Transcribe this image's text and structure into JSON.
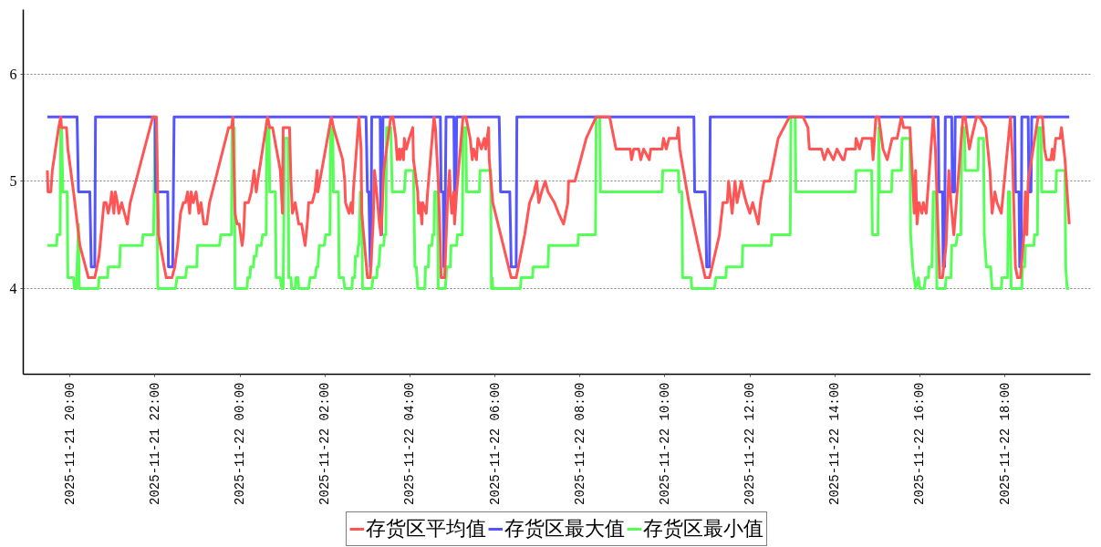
{
  "chart_data": {
    "type": "line",
    "grid": "y",
    "legend": "bottom",
    "line_style": "solid",
    "xlim": [
      "2025-11-21T18:54",
      "2025-11-22T20:01"
    ],
    "xticks": [
      {
        "value": "2025-11-21T20:00",
        "label": "2025-11-21 20:00"
      },
      {
        "value": "2025-11-21T22:00",
        "label": "2025-11-21 22:00"
      },
      {
        "value": "2025-11-22T00:00",
        "label": "2025-11-22 00:00"
      },
      {
        "value": "2025-11-22T02:00",
        "label": "2025-11-22 02:00"
      },
      {
        "value": "2025-11-22T04:00",
        "label": "2025-11-22 04:00"
      },
      {
        "value": "2025-11-22T06:00",
        "label": "2025-11-22 06:00"
      },
      {
        "value": "2025-11-22T08:00",
        "label": "2025-11-22 08:00"
      },
      {
        "value": "2025-11-22T10:00",
        "label": "2025-11-22 10:00"
      },
      {
        "value": "2025-11-22T12:00",
        "label": "2025-11-22 12:00"
      },
      {
        "value": "2025-11-22T14:00",
        "label": "2025-11-22 14:00"
      },
      {
        "value": "2025-11-22T16:00",
        "label": "2025-11-22 16:00"
      },
      {
        "value": "2025-11-22T18:00",
        "label": "2025-11-22 18:00"
      }
    ],
    "ylim": [
      3.2,
      6.6
    ],
    "yticks": [
      4,
      5,
      6
    ],
    "series": [
      {
        "name": "存货区平均值",
        "color": "#ff5555",
        "x": [
          "2025-11-21T19:28",
          "2025-11-21T19:29",
          "2025-11-21T19:33",
          "2025-11-21T19:35",
          "2025-11-21T19:44",
          "2025-11-21T19:47",
          "2025-11-21T19:48",
          "2025-11-21T19:55",
          "2025-11-21T19:57",
          "2025-11-21T20:05",
          "2025-11-21T20:14",
          "2025-11-21T20:22",
          "2025-11-21T20:26",
          "2025-11-21T20:35",
          "2025-11-21T20:41",
          "2025-11-21T20:48",
          "2025-11-21T20:51",
          "2025-11-21T20:54",
          "2025-11-21T20:57",
          "2025-11-21T20:59",
          "2025-11-21T21:02",
          "2025-11-21T21:04",
          "2025-11-21T21:07",
          "2025-11-21T21:09",
          "2025-11-21T21:13",
          "2025-11-21T21:17",
          "2025-11-21T21:21",
          "2025-11-21T21:25",
          "2025-11-21T21:57",
          "2025-11-21T22:02",
          "2025-11-21T22:05",
          "2025-11-21T22:13",
          "2025-11-21T22:16",
          "2025-11-21T22:24",
          "2025-11-21T22:28",
          "2025-11-21T22:32",
          "2025-11-21T22:36",
          "2025-11-21T22:40",
          "2025-11-21T22:43",
          "2025-11-21T22:46",
          "2025-11-21T22:49",
          "2025-11-21T22:51",
          "2025-11-21T22:54",
          "2025-11-21T22:58",
          "2025-11-21T23:02",
          "2025-11-21T23:05",
          "2025-11-21T23:09",
          "2025-11-21T23:13",
          "2025-11-21T23:17",
          "2025-11-21T23:44",
          "2025-11-21T23:48",
          "2025-11-21T23:50",
          "2025-11-21T23:53",
          "2025-11-21T23:56",
          "2025-11-21T23:59",
          "2025-11-22T00:01",
          "2025-11-22T00:03",
          "2025-11-22T00:05",
          "2025-11-22T00:07",
          "2025-11-22T00:12",
          "2025-11-22T00:16",
          "2025-11-22T00:20",
          "2025-11-22T00:23",
          "2025-11-22T00:25",
          "2025-11-22T00:39",
          "2025-11-22T00:42",
          "2025-11-22T00:46",
          "2025-11-22T00:57",
          "2025-11-22T01:00",
          "2025-11-22T01:01",
          "2025-11-22T01:10",
          "2025-11-22T01:12",
          "2025-11-22T01:14",
          "2025-11-22T01:18",
          "2025-11-22T01:23",
          "2025-11-22T01:27",
          "2025-11-22T01:32",
          "2025-11-22T01:35",
          "2025-11-22T01:37",
          "2025-11-22T01:42",
          "2025-11-22T01:46",
          "2025-11-22T01:49",
          "2025-11-22T01:50",
          "2025-11-22T02:09",
          "2025-11-22T02:12",
          "2025-11-22T02:25",
          "2025-11-22T02:28",
          "2025-11-22T02:29",
          "2025-11-22T02:34",
          "2025-11-22T02:37",
          "2025-11-22T02:39",
          "2025-11-22T02:40",
          "2025-11-22T02:48",
          "2025-11-22T02:51",
          "2025-11-22T02:52",
          "2025-11-22T03:00",
          "2025-11-22T03:04",
          "2025-11-22T03:08",
          "2025-11-22T03:10",
          "2025-11-22T03:13",
          "2025-11-22T03:17",
          "2025-11-22T03:19",
          "2025-11-22T03:20",
          "2025-11-22T03:23",
          "2025-11-22T03:33",
          "2025-11-22T03:36",
          "2025-11-22T03:40",
          "2025-11-22T03:42",
          "2025-11-22T03:45",
          "2025-11-22T03:46",
          "2025-11-22T03:49",
          "2025-11-22T03:51",
          "2025-11-22T03:52",
          "2025-11-22T03:55",
          "2025-11-22T03:59",
          "2025-11-22T04:04",
          "2025-11-22T04:05",
          "2025-11-22T04:11",
          "2025-11-22T04:12",
          "2025-11-22T04:14",
          "2025-11-22T04:17",
          "2025-11-22T04:18",
          "2025-11-22T04:23",
          "2025-11-22T04:25",
          "2025-11-22T04:34",
          "2025-11-22T04:36",
          "2025-11-22T04:40",
          "2025-11-22T04:43",
          "2025-11-22T04:44",
          "2025-11-22T04:49",
          "2025-11-22T04:53",
          "2025-11-22T04:56",
          "2025-11-22T04:57",
          "2025-11-22T04:59",
          "2025-11-22T05:02",
          "2025-11-22T05:03",
          "2025-11-22T05:06",
          "2025-11-22T05:15",
          "2025-11-22T05:19",
          "2025-11-22T05:25",
          "2025-11-22T05:28",
          "2025-11-22T05:30",
          "2025-11-22T05:34",
          "2025-11-22T05:36",
          "2025-11-22T05:41",
          "2025-11-22T05:45",
          "2025-11-22T05:47",
          "2025-11-22T05:51",
          "2025-11-22T05:52",
          "2025-11-22T05:57",
          "2025-11-22T06:23",
          "2025-11-22T06:30",
          "2025-11-22T06:42",
          "2025-11-22T06:49",
          "2025-11-22T06:55",
          "2025-11-22T06:59",
          "2025-11-22T07:02",
          "2025-11-22T07:06",
          "2025-11-22T07:11",
          "2025-11-22T07:15",
          "2025-11-22T07:24",
          "2025-11-22T07:30",
          "2025-11-22T07:37",
          "2025-11-22T07:43",
          "2025-11-22T07:44",
          "2025-11-22T07:53",
          "2025-11-22T08:09",
          "2025-11-22T08:23",
          "2025-11-22T08:42",
          "2025-11-22T08:51",
          "2025-11-22T09:11",
          "2025-11-22T09:13",
          "2025-11-22T09:16",
          "2025-11-22T09:23",
          "2025-11-22T09:26",
          "2025-11-22T09:30",
          "2025-11-22T09:38",
          "2025-11-22T09:40",
          "2025-11-22T09:56",
          "2025-11-22T09:58",
          "2025-11-22T10:02",
          "2025-11-22T10:06",
          "2025-11-22T10:17",
          "2025-11-22T10:19",
          "2025-11-22T10:21",
          "2025-11-22T10:34",
          "2025-11-22T10:47",
          "2025-11-22T10:57",
          "2025-11-22T11:03",
          "2025-11-22T11:10",
          "2025-11-22T11:17",
          "2025-11-22T11:22",
          "2025-11-22T11:28",
          "2025-11-22T11:30",
          "2025-11-22T11:35",
          "2025-11-22T11:39",
          "2025-11-22T11:42",
          "2025-11-22T11:48",
          "2025-11-22T11:51",
          "2025-11-22T11:55",
          "2025-11-22T12:00",
          "2025-11-22T12:04",
          "2025-11-22T12:08",
          "2025-11-22T12:12",
          "2025-11-22T12:15",
          "2025-11-22T12:20",
          "2025-11-22T12:28",
          "2025-11-22T12:40",
          "2025-11-22T12:56",
          "2025-11-22T13:15",
          "2025-11-22T13:22",
          "2025-11-22T13:24",
          "2025-11-22T13:41",
          "2025-11-22T13:45",
          "2025-11-22T13:50",
          "2025-11-22T13:58",
          "2025-11-22T14:03",
          "2025-11-22T14:11",
          "2025-11-22T14:13",
          "2025-11-22T14:16",
          "2025-11-22T14:29",
          "2025-11-22T14:30",
          "2025-11-22T14:35",
          "2025-11-22T14:39",
          "2025-11-22T14:52",
          "2025-11-22T14:54",
          "2025-11-22T14:58",
          "2025-11-22T15:02",
          "2025-11-22T15:08",
          "2025-11-22T15:14",
          "2025-11-22T15:21",
          "2025-11-22T15:28",
          "2025-11-22T15:34",
          "2025-11-22T15:37",
          "2025-11-22T15:46",
          "2025-11-22T15:50",
          "2025-11-22T15:52",
          "2025-11-22T15:54",
          "2025-11-22T15:56",
          "2025-11-22T15:59",
          "2025-11-22T16:03",
          "2025-11-22T16:05",
          "2025-11-22T16:09",
          "2025-11-22T16:19",
          "2025-11-22T16:22",
          "2025-11-22T16:24",
          "2025-11-22T16:28",
          "2025-11-22T16:32",
          "2025-11-22T16:37",
          "2025-11-22T16:41",
          "2025-11-22T16:44",
          "2025-11-22T16:48",
          "2025-11-22T17:01",
          "2025-11-22T17:04",
          "2025-11-22T17:10",
          "2025-11-22T17:13",
          "2025-11-22T17:20",
          "2025-11-22T17:24",
          "2025-11-22T17:33",
          "2025-11-22T17:39",
          "2025-11-22T17:42",
          "2025-11-22T17:46",
          "2025-11-22T17:49",
          "2025-11-22T17:55",
          "2025-11-22T18:08",
          "2025-11-22T18:11",
          "2025-11-22T18:15",
          "2025-11-22T18:18",
          "2025-11-22T18:22",
          "2025-11-22T18:27",
          "2025-11-22T18:29",
          "2025-11-22T18:31",
          "2025-11-22T18:33",
          "2025-11-22T18:47",
          "2025-11-22T18:53",
          "2025-11-22T18:56",
          "2025-11-22T18:59",
          "2025-11-22T19:05",
          "2025-11-22T19:07",
          "2025-11-22T19:09",
          "2025-11-22T19:12",
          "2025-11-22T19:18",
          "2025-11-22T19:20",
          "2025-11-22T19:25",
          "2025-11-22T19:29",
          "2025-11-22T19:31"
        ],
        "values": [
          5.1,
          4.9,
          4.9,
          5.1,
          5.5,
          5.6,
          5.5,
          5.5,
          5.3,
          4.9,
          4.4,
          4.2,
          4.1,
          4.1,
          4.3,
          4.8,
          4.8,
          4.7,
          4.8,
          4.9,
          4.7,
          4.9,
          4.8,
          4.7,
          4.8,
          4.7,
          4.6,
          4.8,
          5.6,
          5.6,
          4.5,
          4.2,
          4.1,
          4.1,
          4.2,
          4.4,
          4.7,
          4.8,
          4.8,
          4.9,
          4.7,
          4.9,
          4.8,
          4.9,
          4.7,
          4.8,
          4.6,
          4.6,
          4.8,
          5.5,
          5.5,
          5.6,
          4.7,
          4.6,
          4.6,
          4.5,
          4.4,
          4.5,
          4.8,
          4.8,
          4.9,
          5.1,
          4.9,
          5.0,
          5.6,
          5.5,
          5.5,
          5.1,
          4.7,
          5.5,
          5.5,
          5.0,
          4.7,
          4.8,
          4.6,
          4.6,
          4.4,
          4.6,
          4.8,
          4.8,
          4.9,
          5.1,
          4.9,
          5.6,
          5.5,
          5.2,
          5.0,
          4.8,
          4.7,
          4.8,
          4.7,
          4.9,
          5.6,
          5.3,
          4.7,
          4.1,
          4.1,
          4.6,
          5.1,
          4.9,
          4.6,
          4.5,
          4.6,
          5.1,
          5.6,
          5.6,
          5.4,
          5.2,
          5.3,
          5.2,
          5.3,
          5.2,
          5.4,
          5.3,
          5.4,
          5.5,
          5.2,
          4.9,
          4.7,
          4.8,
          4.6,
          4.8,
          4.7,
          4.9,
          5.6,
          5.5,
          5.0,
          4.4,
          4.1,
          4.1,
          4.8,
          5.1,
          4.9,
          4.7,
          4.9,
          4.6,
          4.9,
          5.6,
          5.6,
          5.4,
          5.2,
          5.3,
          5.2,
          5.4,
          5.3,
          5.4,
          5.3,
          5.5,
          5.2,
          4.8,
          4.1,
          4.1,
          4.5,
          4.8,
          4.9,
          5.0,
          4.8,
          4.9,
          5.0,
          4.9,
          4.8,
          4.7,
          4.6,
          4.8,
          5.0,
          5.0,
          5.4,
          5.6,
          5.6,
          5.3,
          5.3,
          5.2,
          5.3,
          5.3,
          5.2,
          5.3,
          5.2,
          5.3,
          5.3,
          5.4,
          5.3,
          5.4,
          5.4,
          5.5,
          5.3,
          4.8,
          4.4,
          4.1,
          4.1,
          4.3,
          4.5,
          4.8,
          4.8,
          5.0,
          4.7,
          5.0,
          4.8,
          5.0,
          4.9,
          4.8,
          4.7,
          4.8,
          4.7,
          4.6,
          4.8,
          5.0,
          5.0,
          5.4,
          5.6,
          5.6,
          5.5,
          5.3,
          5.3,
          5.2,
          5.3,
          5.2,
          5.3,
          5.2,
          5.2,
          5.3,
          5.3,
          5.4,
          5.3,
          5.4,
          5.4,
          5.2,
          5.6,
          5.6,
          5.3,
          5.2,
          5.4,
          5.4,
          5.6,
          5.5,
          5.5,
          5.0,
          4.7,
          5.1,
          4.6,
          4.8,
          4.7,
          4.8,
          4.7,
          5.6,
          5.3,
          4.9,
          4.1,
          4.1,
          4.4,
          5.1,
          4.8,
          4.5,
          5.6,
          5.6,
          5.3,
          5.4,
          5.6,
          5.6,
          5.5,
          5.1,
          4.7,
          4.9,
          4.8,
          4.7,
          5.6,
          5.2,
          4.2,
          4.1,
          4.1,
          4.5,
          4.9,
          4.5,
          5.0,
          5.6,
          5.6,
          5.3,
          5.2,
          5.2,
          5.3,
          5.2,
          5.4,
          5.4,
          5.5,
          5.2,
          4.8,
          4.6
        ]
      },
      {
        "name": "存货区最大值",
        "color": "#5555ff",
        "x": [
          "2025-11-21T19:28",
          "2025-11-21T20:10",
          "2025-11-21T20:12",
          "2025-11-21T20:28",
          "2025-11-21T20:30",
          "2025-11-21T20:35",
          "2025-11-21T20:36",
          "2025-11-21T22:00",
          "2025-11-21T22:01",
          "2025-11-21T22:18",
          "2025-11-21T22:19",
          "2025-11-21T22:25",
          "2025-11-21T22:27",
          "2025-11-22T02:58",
          "2025-11-22T03:00",
          "2025-11-22T03:02",
          "2025-11-22T03:04",
          "2025-11-22T03:05",
          "2025-11-22T03:06",
          "2025-11-22T03:18",
          "2025-11-22T03:19",
          "2025-11-22T03:20",
          "2025-11-22T03:22",
          "2025-11-22T04:43",
          "2025-11-22T04:44",
          "2025-11-22T04:47",
          "2025-11-22T04:48",
          "2025-11-22T04:49",
          "2025-11-22T04:51",
          "2025-11-22T05:02",
          "2025-11-22T05:03",
          "2025-11-22T05:05",
          "2025-11-22T05:06",
          "2025-11-22T06:06",
          "2025-11-22T06:08",
          "2025-11-22T06:21",
          "2025-11-22T06:23",
          "2025-11-22T06:30",
          "2025-11-22T06:31",
          "2025-11-22T10:41",
          "2025-11-22T10:42",
          "2025-11-22T10:57",
          "2025-11-22T10:59",
          "2025-11-22T11:03",
          "2025-11-22T11:04",
          "2025-11-22T16:26",
          "2025-11-22T16:27",
          "2025-11-22T16:32",
          "2025-11-22T16:33",
          "2025-11-22T16:35",
          "2025-11-22T16:36",
          "2025-11-22T16:45",
          "2025-11-22T16:46",
          "2025-11-22T16:49",
          "2025-11-22T16:50",
          "2025-11-22T18:14",
          "2025-11-22T18:15",
          "2025-11-22T18:20",
          "2025-11-22T18:21",
          "2025-11-22T18:23",
          "2025-11-22T18:24",
          "2025-11-22T18:33",
          "2025-11-22T18:34",
          "2025-11-22T18:37",
          "2025-11-22T18:38",
          "2025-11-22T19:31"
        ],
        "values": [
          5.6,
          5.6,
          4.9,
          4.9,
          4.2,
          4.2,
          5.6,
          5.6,
          4.9,
          4.9,
          4.2,
          4.2,
          5.6,
          5.6,
          4.9,
          4.9,
          4.2,
          4.2,
          5.6,
          5.6,
          4.5,
          4.5,
          5.6,
          5.6,
          4.9,
          4.9,
          4.2,
          4.2,
          5.6,
          5.6,
          4.9,
          4.9,
          5.6,
          5.6,
          4.9,
          4.9,
          4.2,
          4.2,
          5.6,
          5.6,
          4.9,
          4.9,
          4.2,
          4.2,
          5.6,
          5.6,
          4.9,
          4.9,
          4.2,
          4.2,
          5.6,
          5.6,
          4.9,
          4.9,
          5.6,
          5.6,
          4.9,
          4.9,
          4.2,
          4.2,
          5.6,
          5.6,
          4.9,
          4.9,
          5.6,
          5.6
        ]
      },
      {
        "name": "存货区最小值",
        "color": "#55ff55",
        "x": [
          "2025-11-21T19:28",
          "2025-11-21T19:41",
          "2025-11-21T19:42",
          "2025-11-21T19:46",
          "2025-11-21T19:47",
          "2025-11-21T19:48",
          "2025-11-21T19:50",
          "2025-11-21T19:56",
          "2025-11-21T19:57",
          "2025-11-21T20:05",
          "2025-11-21T20:06",
          "2025-11-21T20:09",
          "2025-11-21T20:12",
          "2025-11-21T20:13",
          "2025-11-21T20:40",
          "2025-11-21T20:41",
          "2025-11-21T20:53",
          "2025-11-21T20:54",
          "2025-11-21T21:10",
          "2025-11-21T21:11",
          "2025-11-21T21:42",
          "2025-11-21T21:43",
          "2025-11-21T21:58",
          "2025-11-21T22:00",
          "2025-11-21T22:02",
          "2025-11-21T22:04",
          "2025-11-21T22:29",
          "2025-11-21T22:31",
          "2025-11-21T22:43",
          "2025-11-21T22:45",
          "2025-11-21T22:59",
          "2025-11-21T23:00",
          "2025-11-21T23:31",
          "2025-11-21T23:33",
          "2025-11-21T23:48",
          "2025-11-21T23:49",
          "2025-11-21T23:52",
          "2025-11-21T23:53",
          "2025-11-22T00:10",
          "2025-11-22T00:11",
          "2025-11-22T00:14",
          "2025-11-22T00:15",
          "2025-11-22T00:19",
          "2025-11-22T00:20",
          "2025-11-22T00:23",
          "2025-11-22T00:24",
          "2025-11-22T00:30",
          "2025-11-22T00:32",
          "2025-11-22T00:37",
          "2025-11-22T00:38",
          "2025-11-22T00:41",
          "2025-11-22T00:42",
          "2025-11-22T00:50",
          "2025-11-22T00:51",
          "2025-11-22T00:57",
          "2025-11-22T00:59",
          "2025-11-22T01:01",
          "2025-11-22T01:03",
          "2025-11-22T01:08",
          "2025-11-22T01:09",
          "2025-11-22T01:12",
          "2025-11-22T01:13",
          "2025-11-22T01:18",
          "2025-11-22T01:19",
          "2025-11-22T01:22",
          "2025-11-22T01:23",
          "2025-11-22T01:37",
          "2025-11-22T01:39",
          "2025-11-22T01:46",
          "2025-11-22T01:48",
          "2025-11-22T01:50",
          "2025-11-22T01:52",
          "2025-11-22T01:59",
          "2025-11-22T02:01",
          "2025-11-22T02:07",
          "2025-11-22T02:08",
          "2025-11-22T02:11",
          "2025-11-22T02:12",
          "2025-11-22T02:19",
          "2025-11-22T02:20",
          "2025-11-22T02:26",
          "2025-11-22T02:28",
          "2025-11-22T02:38",
          "2025-11-22T02:39",
          "2025-11-22T02:42",
          "2025-11-22T02:43",
          "2025-11-22T02:46",
          "2025-11-22T02:47",
          "2025-11-22T02:48",
          "2025-11-22T02:50",
          "2025-11-22T02:52",
          "2025-11-22T02:53",
          "2025-11-22T03:06",
          "2025-11-22T03:08",
          "2025-11-22T03:13",
          "2025-11-22T03:14",
          "2025-11-22T03:16",
          "2025-11-22T03:18",
          "2025-11-22T03:23",
          "2025-11-22T03:24",
          "2025-11-22T03:26",
          "2025-11-22T03:27",
          "2025-11-22T03:33",
          "2025-11-22T03:35",
          "2025-11-22T03:52",
          "2025-11-22T03:54",
          "2025-11-22T04:05",
          "2025-11-22T04:07",
          "2025-11-22T04:09",
          "2025-11-22T04:11",
          "2025-11-22T04:21",
          "2025-11-22T04:22",
          "2025-11-22T04:26",
          "2025-11-22T04:27",
          "2025-11-22T04:31",
          "2025-11-22T04:32",
          "2025-11-22T04:34",
          "2025-11-22T04:35",
          "2025-11-22T04:39",
          "2025-11-22T04:40",
          "2025-11-22T04:50",
          "2025-11-22T04:52",
          "2025-11-22T04:57",
          "2025-11-22T04:58",
          "2025-11-22T05:06",
          "2025-11-22T05:07",
          "2025-11-22T05:14",
          "2025-11-22T05:15",
          "2025-11-22T05:19",
          "2025-11-22T05:20",
          "2025-11-22T05:38",
          "2025-11-22T05:39",
          "2025-11-22T05:54",
          "2025-11-22T05:55",
          "2025-11-22T05:56",
          "2025-11-22T05:57",
          "2025-11-22T06:36",
          "2025-11-22T06:37",
          "2025-11-22T06:53",
          "2025-11-22T06:54",
          "2025-11-22T07:15",
          "2025-11-22T07:16",
          "2025-11-22T07:57",
          "2025-11-22T07:58",
          "2025-11-22T08:22",
          "2025-11-22T08:23",
          "2025-11-22T08:28",
          "2025-11-22T08:29",
          "2025-11-22T09:56",
          "2025-11-22T09:57",
          "2025-11-22T10:19",
          "2025-11-22T10:20",
          "2025-11-22T10:24",
          "2025-11-22T10:25",
          "2025-11-22T10:37",
          "2025-11-22T10:38",
          "2025-11-22T11:10",
          "2025-11-22T11:12",
          "2025-11-22T11:26",
          "2025-11-22T11:27",
          "2025-11-22T11:49",
          "2025-11-22T11:50",
          "2025-11-22T12:30",
          "2025-11-22T12:31",
          "2025-11-22T12:57",
          "2025-11-22T12:58",
          "2025-11-22T13:04",
          "2025-11-22T13:05",
          "2025-11-22T14:29",
          "2025-11-22T14:30",
          "2025-11-22T14:52",
          "2025-11-22T14:53",
          "2025-11-22T15:01",
          "2025-11-22T15:02",
          "2025-11-22T15:03",
          "2025-11-22T15:20",
          "2025-11-22T15:21",
          "2025-11-22T15:34",
          "2025-11-22T15:35",
          "2025-11-22T15:46",
          "2025-11-22T15:47",
          "2025-11-22T15:50",
          "2025-11-22T15:54",
          "2025-11-22T15:58",
          "2025-11-22T16:00",
          "2025-11-22T16:06",
          "2025-11-22T16:08",
          "2025-11-22T16:12",
          "2025-11-22T16:13",
          "2025-11-22T16:17",
          "2025-11-22T16:18",
          "2025-11-22T16:19",
          "2025-11-22T16:23",
          "2025-11-22T16:24",
          "2025-11-22T16:36",
          "2025-11-22T16:37",
          "2025-11-22T16:44",
          "2025-11-22T16:45",
          "2025-11-22T16:51",
          "2025-11-22T16:53",
          "2025-11-22T16:58",
          "2025-11-22T16:59",
          "2025-11-22T17:03",
          "2025-11-22T17:04",
          "2025-11-22T17:22",
          "2025-11-22T17:23",
          "2025-11-22T17:30",
          "2025-11-22T17:31",
          "2025-11-22T17:34",
          "2025-11-22T17:40",
          "2025-11-22T17:42",
          "2025-11-22T17:55",
          "2025-11-22T17:56",
          "2025-11-22T18:04",
          "2025-11-22T18:05",
          "2025-11-22T18:07",
          "2025-11-22T18:09",
          "2025-11-22T18:24",
          "2025-11-22T18:25",
          "2025-11-22T18:28",
          "2025-11-22T18:29",
          "2025-11-22T18:41",
          "2025-11-22T18:42",
          "2025-11-22T18:46",
          "2025-11-22T18:47",
          "2025-11-22T18:51",
          "2025-11-22T18:52",
          "2025-11-22T19:12",
          "2025-11-22T19:13",
          "2025-11-22T19:25",
          "2025-11-22T19:26",
          "2025-11-22T19:28",
          "2025-11-22T19:31"
        ],
        "values": [
          4.4,
          4.4,
          4.5,
          4.5,
          5.5,
          5.5,
          4.9,
          4.9,
          4.1,
          4.1,
          4.0,
          4.0,
          4.6,
          4.0,
          4.0,
          4.1,
          4.1,
          4.2,
          4.2,
          4.4,
          4.4,
          4.5,
          4.5,
          5.5,
          5.5,
          4.0,
          4.0,
          4.1,
          4.1,
          4.2,
          4.2,
          4.4,
          4.4,
          4.5,
          4.5,
          5.5,
          5.5,
          4.0,
          4.0,
          4.1,
          4.1,
          4.2,
          4.2,
          4.3,
          4.3,
          4.4,
          4.4,
          4.5,
          4.5,
          5.5,
          5.5,
          4.9,
          4.9,
          4.1,
          4.1,
          4.0,
          4.0,
          5.4,
          5.4,
          4.1,
          4.1,
          4.0,
          4.0,
          4.1,
          4.1,
          4.0,
          4.0,
          4.1,
          4.1,
          4.2,
          4.2,
          4.4,
          4.4,
          4.5,
          4.5,
          5.5,
          5.5,
          4.9,
          4.9,
          4.1,
          4.1,
          4.0,
          4.0,
          4.1,
          4.1,
          4.3,
          4.3,
          4.4,
          4.4,
          4.9,
          4.9,
          4.0,
          4.0,
          4.1,
          4.1,
          4.2,
          4.2,
          4.4,
          4.4,
          4.5,
          4.5,
          5.5,
          5.5,
          4.9,
          4.9,
          5.1,
          5.1,
          4.2,
          4.2,
          4.0,
          4.0,
          4.2,
          4.2,
          4.4,
          4.4,
          4.5,
          4.5,
          4.9,
          4.9,
          4.0,
          4.0,
          4.2,
          4.2,
          4.4,
          4.4,
          4.5,
          4.5,
          5.5,
          5.5,
          4.9,
          4.9,
          5.1,
          5.1,
          4.0,
          4.1,
          4.0,
          4.0,
          4.1,
          4.1,
          4.2,
          4.2,
          4.4,
          4.4,
          4.5,
          4.5,
          5.6,
          5.6,
          4.9,
          4.9,
          5.1,
          5.1,
          4.9,
          4.9,
          4.1,
          4.1,
          4.0,
          4.0,
          4.1,
          4.1,
          4.2,
          4.2,
          4.4,
          4.4,
          4.5,
          4.5,
          5.6,
          5.6,
          4.9,
          4.9,
          5.1,
          5.1,
          4.5,
          4.5,
          5.5,
          4.9,
          4.9,
          5.1,
          5.1,
          5.4,
          5.4,
          4.5,
          4.2,
          4.0,
          4.1,
          4.0,
          4.0,
          4.1,
          4.1,
          4.2,
          4.2,
          4.5,
          4.9,
          4.9,
          4.0,
          4.0,
          4.1,
          4.1,
          4.4,
          4.4,
          4.5,
          4.5,
          5.5,
          5.5,
          5.1,
          5.1,
          5.4,
          5.4,
          4.5,
          4.2,
          4.2,
          4.0,
          4.0,
          4.1,
          4.1,
          4.9,
          4.9,
          4.0,
          4.0,
          4.2,
          4.2,
          4.4,
          4.4,
          4.5,
          4.5,
          5.5,
          5.5,
          4.9,
          4.9,
          5.1,
          5.1,
          4.2,
          4.0,
          4.0
        ]
      }
    ]
  }
}
